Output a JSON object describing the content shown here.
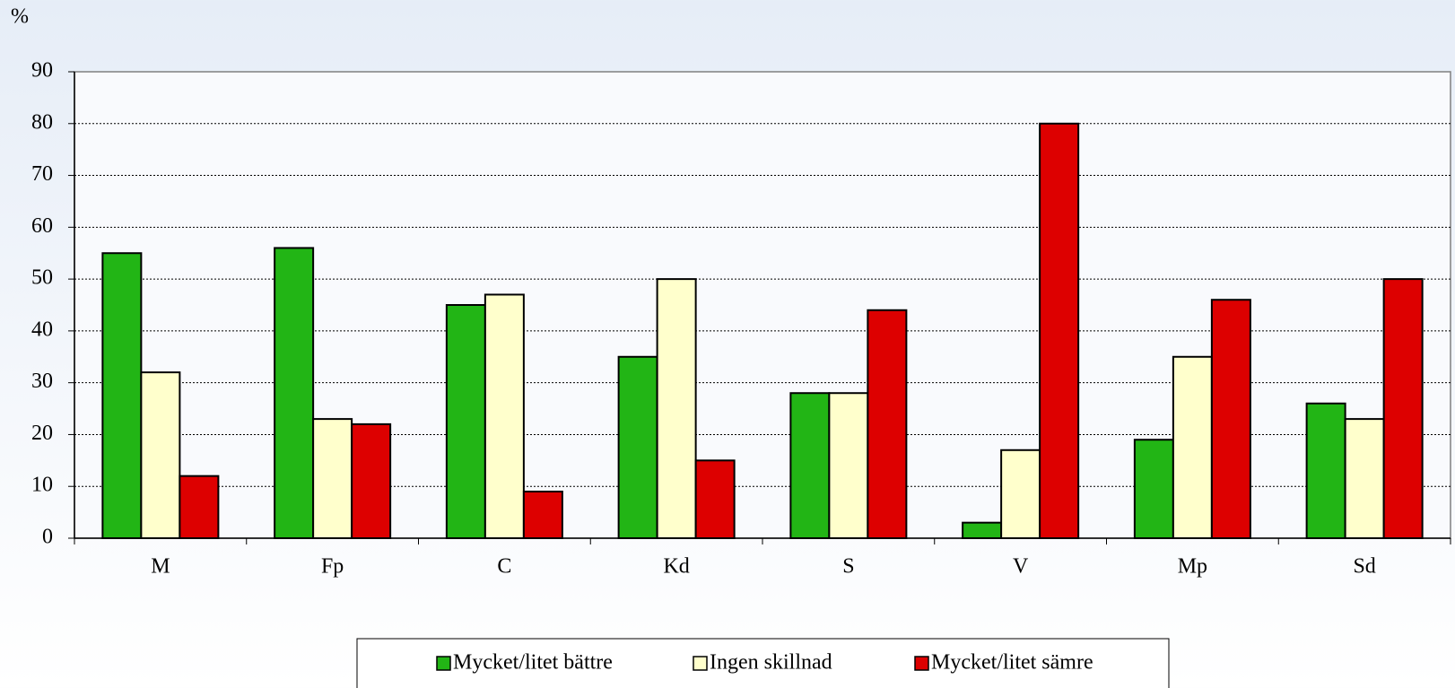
{
  "chart_data": {
    "type": "bar",
    "y_label": "%",
    "categories": [
      "M",
      "Fp",
      "C",
      "Kd",
      "S",
      "V",
      "Mp",
      "Sd"
    ],
    "series": [
      {
        "name": "Mycket/litet bättre",
        "color": "#22b515",
        "values": [
          55,
          56,
          45,
          35,
          28,
          3,
          19,
          26
        ]
      },
      {
        "name": "Ingen skillnad",
        "color": "#ffffcc",
        "values": [
          32,
          23,
          47,
          50,
          28,
          17,
          35,
          23
        ]
      },
      {
        "name": "Mycket/litet sämre",
        "color": "#dd0000",
        "values": [
          12,
          22,
          9,
          15,
          44,
          80,
          46,
          50
        ]
      }
    ],
    "ylim": [
      0,
      90
    ],
    "yticks": [
      0,
      10,
      20,
      30,
      40,
      50,
      60,
      70,
      80,
      90
    ],
    "grid": true,
    "legend": "bottom"
  }
}
